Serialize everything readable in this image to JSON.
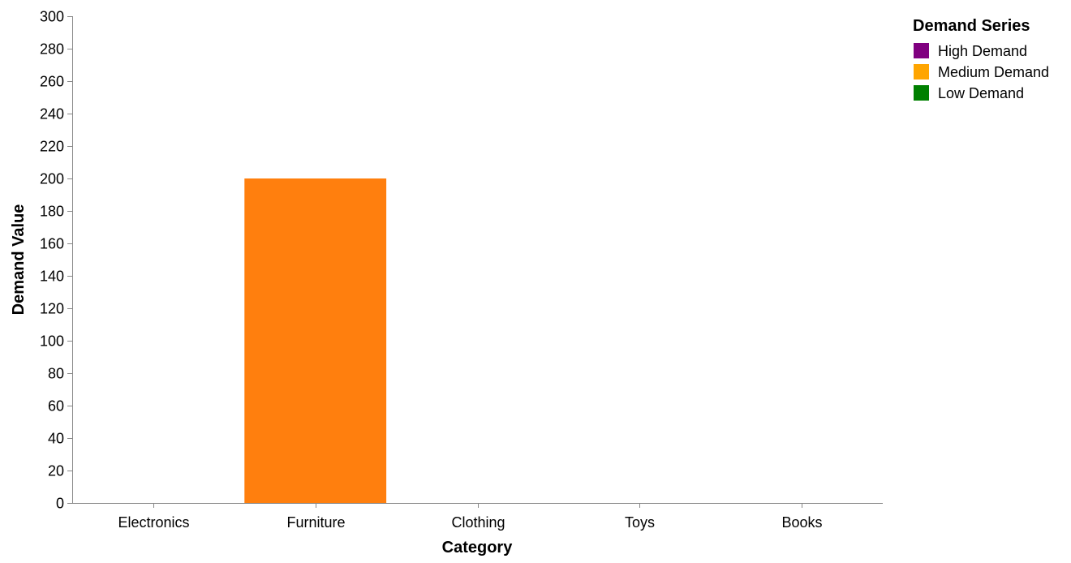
{
  "chart_data": {
    "type": "bar",
    "title": "",
    "xlabel": "Category",
    "ylabel": "Demand Value",
    "categories": [
      "Electronics",
      "Furniture",
      "Clothing",
      "Toys",
      "Books"
    ],
    "ylim": [
      0,
      300
    ],
    "yticks": [
      0,
      20,
      40,
      60,
      80,
      100,
      120,
      140,
      160,
      180,
      200,
      220,
      240,
      260,
      280,
      300
    ],
    "grid": false,
    "legend": {
      "title": "Demand Series",
      "placement": "right",
      "entries": [
        {
          "name": "High Demand",
          "color": "#800080"
        },
        {
          "name": "Medium Demand",
          "color": "#FFA500"
        },
        {
          "name": "Low Demand",
          "color": "#008000"
        }
      ]
    },
    "series": [
      {
        "name": "High Demand",
        "color": "#800080",
        "values": [
          0,
          0,
          0,
          0,
          0
        ]
      },
      {
        "name": "Medium Demand",
        "color": "#FFA500",
        "values": [
          0,
          0,
          0,
          0,
          0
        ]
      },
      {
        "name": "Low Demand",
        "color": "#008000",
        "values": [
          0,
          0,
          0,
          0,
          0
        ]
      }
    ],
    "bars": [
      {
        "category": "Furniture",
        "value": 200,
        "color": "#FF7F0E"
      }
    ]
  }
}
